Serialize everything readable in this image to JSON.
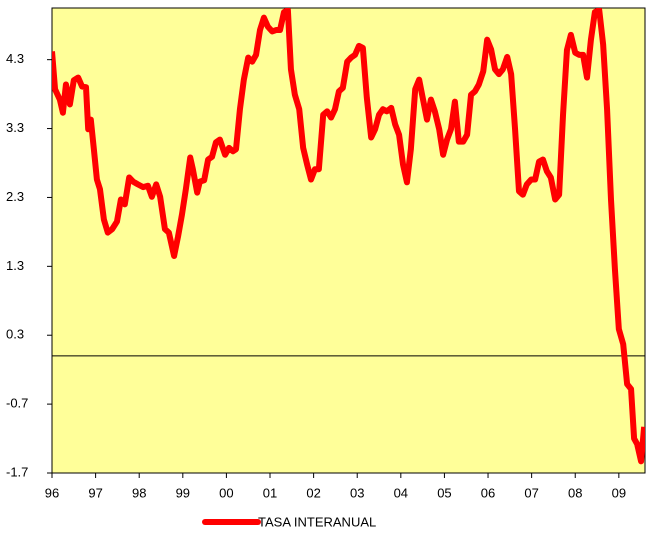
{
  "chart_data": {
    "type": "line",
    "x": [
      1996.0,
      1996.07,
      1996.18,
      1996.25,
      1996.32,
      1996.41,
      1996.5,
      1996.6,
      1996.69,
      1996.78,
      1996.83,
      1996.89,
      1996.96,
      1997.03,
      1997.1,
      1997.19,
      1997.28,
      1997.38,
      1997.49,
      1997.58,
      1997.67,
      1997.77,
      1997.86,
      1997.97,
      1998.09,
      1998.2,
      1998.29,
      1998.39,
      1998.48,
      1998.59,
      1998.68,
      1998.8,
      1998.89,
      1998.98,
      1999.07,
      1999.17,
      1999.23,
      1999.33,
      1999.39,
      1999.49,
      1999.58,
      1999.67,
      1999.76,
      1999.85,
      1999.97,
      2000.06,
      2000.15,
      2000.22,
      2000.31,
      2000.4,
      2000.5,
      2000.59,
      2000.68,
      2000.77,
      2000.86,
      2000.95,
      2001.05,
      2001.14,
      2001.23,
      2001.32,
      2001.41,
      2001.48,
      2001.57,
      2001.67,
      2001.76,
      2001.85,
      2001.94,
      2002.03,
      2002.12,
      2002.22,
      2002.31,
      2002.4,
      2002.49,
      2002.58,
      2002.67,
      2002.77,
      2002.86,
      2002.95,
      2003.04,
      2003.13,
      2003.22,
      2003.32,
      2003.41,
      2003.5,
      2003.59,
      2003.68,
      2003.78,
      2003.87,
      2003.96,
      2004.05,
      2004.14,
      2004.23,
      2004.33,
      2004.42,
      2004.51,
      2004.6,
      2004.69,
      2004.78,
      2004.88,
      2004.97,
      2005.06,
      2005.15,
      2005.24,
      2005.33,
      2005.43,
      2005.52,
      2005.61,
      2005.7,
      2005.79,
      2005.89,
      2005.98,
      2006.07,
      2006.16,
      2006.25,
      2006.34,
      2006.44,
      2006.53,
      2006.62,
      2006.71,
      2006.8,
      2006.89,
      2006.99,
      2007.08,
      2007.17,
      2007.26,
      2007.35,
      2007.44,
      2007.54,
      2007.63,
      2007.72,
      2007.81,
      2007.9,
      2008.0,
      2008.09,
      2008.18,
      2008.27,
      2008.36,
      2008.45,
      2008.55,
      2008.64,
      2008.73,
      2008.82,
      2008.91,
      2009.0,
      2009.1,
      2009.19,
      2009.28,
      2009.35,
      2009.42,
      2009.51,
      2009.58
    ],
    "series": [
      {
        "name": "TASA INTERANUAL",
        "color": "#ff0000",
        "values": [
          4.42,
          3.87,
          3.72,
          3.53,
          3.94,
          3.65,
          4.0,
          4.04,
          3.91,
          3.9,
          3.29,
          3.43,
          3.0,
          2.56,
          2.42,
          1.98,
          1.79,
          1.84,
          1.95,
          2.27,
          2.2,
          2.59,
          2.53,
          2.49,
          2.45,
          2.47,
          2.31,
          2.49,
          2.31,
          1.84,
          1.79,
          1.45,
          1.73,
          2.05,
          2.42,
          2.88,
          2.71,
          2.37,
          2.53,
          2.55,
          2.85,
          2.89,
          3.1,
          3.14,
          2.92,
          3.02,
          2.97,
          3.0,
          3.58,
          4.01,
          4.33,
          4.27,
          4.37,
          4.73,
          4.91,
          4.78,
          4.71,
          4.73,
          4.73,
          4.99,
          5.02,
          4.16,
          3.79,
          3.58,
          3.02,
          2.78,
          2.56,
          2.71,
          2.71,
          3.5,
          3.55,
          3.46,
          3.58,
          3.84,
          3.89,
          4.27,
          4.33,
          4.37,
          4.5,
          4.47,
          3.75,
          3.17,
          3.29,
          3.5,
          3.58,
          3.55,
          3.6,
          3.36,
          3.21,
          2.78,
          2.52,
          3.0,
          3.87,
          4.01,
          3.72,
          3.43,
          3.72,
          3.55,
          3.29,
          2.92,
          3.14,
          3.29,
          3.69,
          3.11,
          3.11,
          3.21,
          3.79,
          3.84,
          3.94,
          4.13,
          4.59,
          4.45,
          4.16,
          4.09,
          4.16,
          4.34,
          4.09,
          3.29,
          2.39,
          2.34,
          2.49,
          2.56,
          2.56,
          2.82,
          2.85,
          2.68,
          2.59,
          2.27,
          2.34,
          3.5,
          4.44,
          4.66,
          4.4,
          4.37,
          4.37,
          4.04,
          4.59,
          4.99,
          5.02,
          4.52,
          3.58,
          2.27,
          1.26,
          0.39,
          0.17,
          -0.41,
          -0.48,
          -1.2,
          -1.28,
          -1.53,
          -1.03
        ]
      }
    ],
    "xlim": [
      1996,
      2009.6
    ],
    "xticks": [
      {
        "value": 1996,
        "label": "96"
      },
      {
        "value": 1997,
        "label": "97"
      },
      {
        "value": 1998,
        "label": "98"
      },
      {
        "value": 1999,
        "label": "99"
      },
      {
        "value": 2000,
        "label": "00"
      },
      {
        "value": 2001,
        "label": "01"
      },
      {
        "value": 2002,
        "label": "02"
      },
      {
        "value": 2003,
        "label": "03"
      },
      {
        "value": 2004,
        "label": "04"
      },
      {
        "value": 2005,
        "label": "05"
      },
      {
        "value": 2006,
        "label": "06"
      },
      {
        "value": 2007,
        "label": "07"
      },
      {
        "value": 2008,
        "label": "08"
      },
      {
        "value": 2009,
        "label": "09"
      }
    ],
    "ylim": [
      -1.7,
      5.05
    ],
    "yticks": [
      -1.7,
      -0.7,
      0.3,
      1.3,
      2.3,
      3.3,
      4.3
    ],
    "legend": "bottom"
  }
}
